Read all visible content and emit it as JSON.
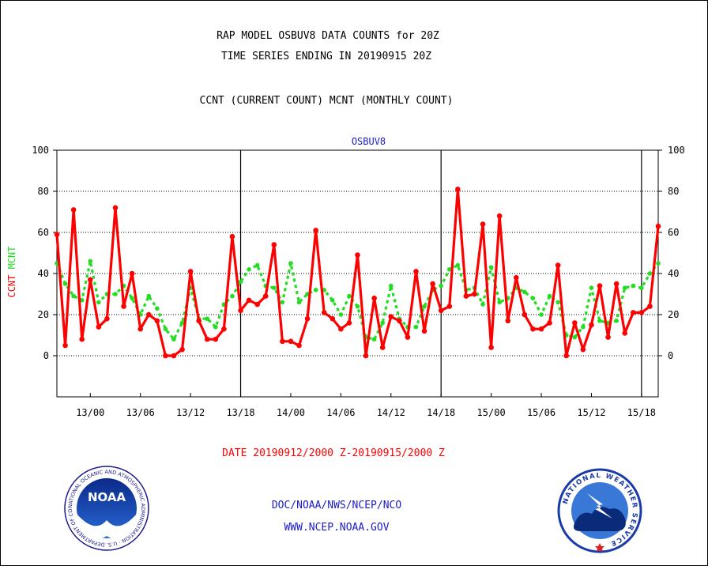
{
  "header": {
    "title_line1": "RAP MODEL OSBUV8 DATA COUNTS for 20Z",
    "title_line2": "TIME SERIES ENDING IN 20190915 20Z",
    "legend_line": "CCNT (CURRENT COUNT) MCNT (MONTHLY COUNT)"
  },
  "footer": {
    "date_range": "DATE 20190912/2000 Z-20190915/2000 Z",
    "org_line": "DOC/NOAA/NWS/NCEP/NCO",
    "url_line": "WWW.NCEP.NOAA.GOV"
  },
  "logos": {
    "noaa_text": "NOAA",
    "noaa_ring_text": "NATIONAL OCEANIC AND ATMOSPHERIC ADMINISTRATION · U.S. DEPARTMENT OF COMMERCE ·",
    "nws_ring_text": "NATIONAL WEATHER SERVICE"
  },
  "colors": {
    "ccnt": "#ff0000",
    "mcnt": "#22dd22",
    "axis_title": "#1a1acc",
    "date_text": "#ff0000",
    "footer_text": "#1a1acc"
  },
  "chart_data": {
    "type": "line",
    "title": "OSBUV8",
    "ylabel_left": [
      "CCNT",
      "MCNT"
    ],
    "ylim": [
      -20,
      100
    ],
    "yticks": [
      0,
      20,
      40,
      60,
      80,
      100
    ],
    "xticks": [
      "13/00",
      "13/06",
      "13/12",
      "13/18",
      "14/00",
      "14/06",
      "14/12",
      "14/18",
      "15/00",
      "15/06",
      "15/12",
      "15/18"
    ],
    "xtick_hours": [
      4,
      10,
      16,
      22,
      28,
      34,
      40,
      46,
      52,
      58,
      64,
      70
    ],
    "day_boundary_hours": [
      22,
      46,
      70
    ],
    "x_hours_range": [
      0,
      72
    ],
    "grid": true,
    "series": [
      {
        "name": "CCNT",
        "values": [
          59,
          5,
          71,
          8,
          37,
          14,
          18,
          72,
          24,
          40,
          13,
          20,
          17,
          0,
          0,
          3,
          41,
          17,
          8,
          8,
          13,
          58,
          22,
          27,
          25,
          29,
          54,
          7,
          7,
          5,
          18,
          61,
          21,
          18,
          13,
          16,
          49,
          0,
          28,
          4,
          19,
          17,
          9,
          41,
          12,
          35,
          22,
          24,
          81,
          29,
          30,
          64,
          4,
          68,
          17,
          38,
          20,
          13,
          13,
          16,
          44,
          0,
          16,
          3,
          15,
          34,
          9,
          35,
          11,
          21,
          21,
          24,
          63
        ]
      },
      {
        "name": "MCNT",
        "values": [
          45,
          35,
          29,
          27,
          46,
          26,
          30,
          30,
          34,
          28,
          20,
          29,
          23,
          13,
          8,
          16,
          33,
          18,
          18,
          14,
          25,
          29,
          36,
          42,
          44,
          34,
          33,
          26,
          45,
          26,
          30,
          32,
          32,
          27,
          20,
          29,
          24,
          9,
          8,
          16,
          34,
          18,
          14,
          14,
          24,
          32,
          34,
          42,
          44,
          32,
          33,
          25,
          43,
          26,
          28,
          33,
          31,
          28,
          20,
          29,
          26,
          10,
          9,
          14,
          33,
          17,
          16,
          17,
          33,
          34,
          33,
          40,
          45
        ]
      }
    ]
  }
}
